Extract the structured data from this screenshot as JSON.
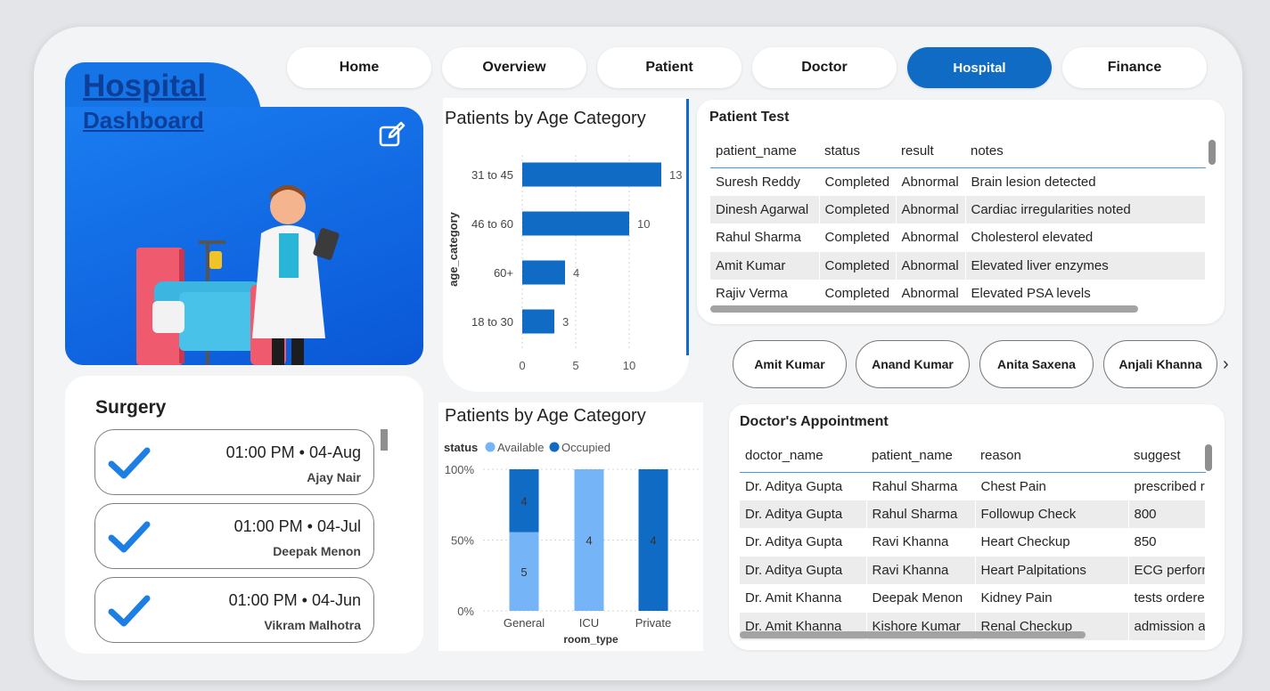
{
  "nav": {
    "items": [
      {
        "label": "Home",
        "active": false
      },
      {
        "label": "Overview",
        "active": false
      },
      {
        "label": "Patient",
        "active": false
      },
      {
        "label": "Doctor",
        "active": false
      },
      {
        "label": "Hospital",
        "active": true
      },
      {
        "label": "Finance",
        "active": false
      }
    ]
  },
  "hero": {
    "title_line1": "Hospital ",
    "title_line2": "Dashboard",
    "edit_icon": "edit-icon",
    "illustration": "doctor-with-hospital-bed"
  },
  "surgery": {
    "title": "Surgery",
    "items": [
      {
        "time": "01:00 PM • 04-Aug",
        "name": "Ajay Nair"
      },
      {
        "time": "01:00 PM • 04-Jul",
        "name": "Deepak Menon"
      },
      {
        "time": "01:00 PM • 04-Jun",
        "name": "Vikram Malhotra"
      }
    ]
  },
  "age_chart": {
    "title": "Patients by Age Category",
    "chart_data": {
      "type": "bar",
      "orientation": "horizontal",
      "categories": [
        "31 to 45",
        "46 to 60",
        "60+",
        "18 to 30"
      ],
      "values": [
        13,
        10,
        4,
        3
      ],
      "ylabel": "age_category",
      "xticks": [
        "0",
        "5",
        "10"
      ],
      "xlim": [
        0,
        13.5
      ],
      "color": "#0f6bc4"
    }
  },
  "patient_test": {
    "title": "Patient Test",
    "columns": [
      "patient_name",
      "status",
      "result",
      "notes"
    ],
    "rows": [
      [
        "Suresh Reddy",
        "Completed",
        "Abnormal",
        "Brain lesion detected"
      ],
      [
        "Dinesh Agarwal",
        "Completed",
        "Abnormal",
        "Cardiac irregularities noted"
      ],
      [
        "Rahul Sharma",
        "Completed",
        "Abnormal",
        "Cholesterol elevated"
      ],
      [
        "Amit Kumar",
        "Completed",
        "Abnormal",
        "Elevated liver enzymes"
      ],
      [
        "Rajiv Verma",
        "Completed",
        "Abnormal",
        "Elevated PSA levels"
      ]
    ]
  },
  "chips": {
    "items": [
      "Amit Kumar",
      "Anand Kumar",
      "Anita Saxena",
      "Anjali Khanna"
    ],
    "next": "›"
  },
  "room_chart": {
    "title": "Patients by Age Category",
    "chart_data": {
      "type": "bar",
      "stacked": "100%",
      "legend_title": "status",
      "categories": [
        "General",
        "ICU",
        "Private"
      ],
      "series": [
        {
          "name": "Available",
          "color": "#74b4f7",
          "values": [
            5,
            4,
            0
          ]
        },
        {
          "name": "Occupied",
          "color": "#0f6bc4",
          "values": [
            4,
            0,
            4
          ]
        }
      ],
      "yticks": [
        "0%",
        "50%",
        "100%"
      ],
      "xlabel": "room_type"
    }
  },
  "appointment": {
    "title": "Doctor's Appointment",
    "columns": [
      "doctor_name",
      "patient_name",
      "reason",
      "suggest"
    ],
    "rows": [
      [
        "Dr. Aditya Gupta",
        "Rahul Sharma",
        "Chest Pain",
        "prescribed r"
      ],
      [
        "Dr. Aditya Gupta",
        "Rahul Sharma",
        "Followup Check",
        "800"
      ],
      [
        "Dr. Aditya Gupta",
        "Ravi Khanna",
        "Heart Checkup",
        "850"
      ],
      [
        "Dr. Aditya Gupta",
        "Ravi Khanna",
        "Heart Palpitations",
        "ECG perforn"
      ],
      [
        "Dr. Amit Khanna",
        "Deepak Menon",
        "Kidney Pain",
        "tests ordere"
      ],
      [
        "Dr. Amit Khanna",
        "Kishore Kumar",
        "Renal Checkup",
        "admission a"
      ]
    ]
  }
}
